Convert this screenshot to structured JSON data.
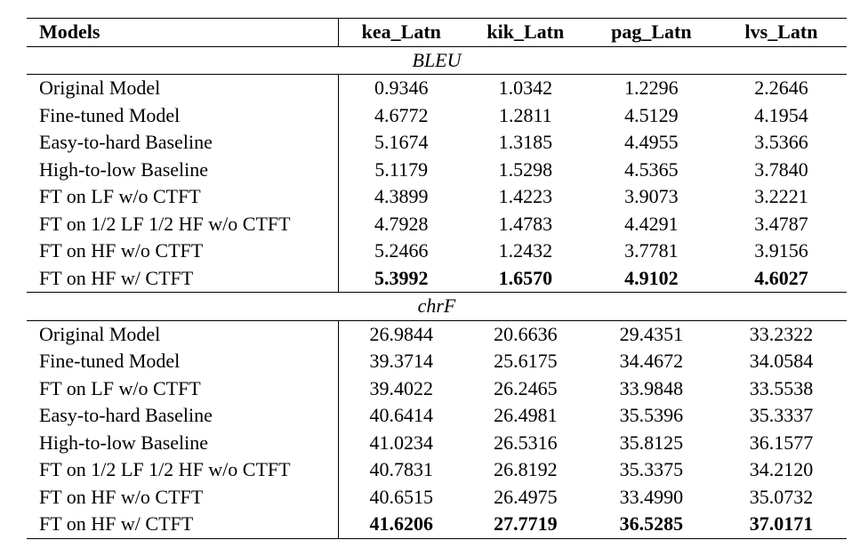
{
  "columns": [
    "Models",
    "kea_Latn",
    "kik_Latn",
    "pag_Latn",
    "lvs_Latn"
  ],
  "sections": [
    {
      "title": "BLEU",
      "rows": [
        {
          "model": "Original Model",
          "values": [
            "0.9346",
            "1.0342",
            "1.2296",
            "2.2646"
          ],
          "bold": false
        },
        {
          "model": "Fine-tuned Model",
          "values": [
            "4.6772",
            "1.2811",
            "4.5129",
            "4.1954"
          ],
          "bold": false
        },
        {
          "model": "Easy-to-hard Baseline",
          "values": [
            "5.1674",
            "1.3185",
            "4.4955",
            "3.5366"
          ],
          "bold": false
        },
        {
          "model": "High-to-low Baseline",
          "values": [
            "5.1179",
            "1.5298",
            "4.5365",
            "3.7840"
          ],
          "bold": false
        },
        {
          "model": "FT on LF w/o CTFT",
          "values": [
            "4.3899",
            "1.4223",
            "3.9073",
            "3.2221"
          ],
          "bold": false
        },
        {
          "model": "FT on 1/2 LF 1/2 HF w/o CTFT",
          "values": [
            "4.7928",
            "1.4783",
            "4.4291",
            "3.4787"
          ],
          "bold": false
        },
        {
          "model": "FT on HF w/o CTFT",
          "values": [
            "5.2466",
            "1.2432",
            "3.7781",
            "3.9156"
          ],
          "bold": false
        },
        {
          "model": "FT on HF w/ CTFT",
          "values": [
            "5.3992",
            "1.6570",
            "4.9102",
            "4.6027"
          ],
          "bold": true
        }
      ]
    },
    {
      "title": "chrF",
      "rows": [
        {
          "model": "Original Model",
          "values": [
            "26.9844",
            "20.6636",
            "29.4351",
            "33.2322"
          ],
          "bold": false
        },
        {
          "model": "Fine-tuned Model",
          "values": [
            "39.3714",
            "25.6175",
            "34.4672",
            "34.0584"
          ],
          "bold": false
        },
        {
          "model": "FT on LF w/o CTFT",
          "values": [
            "39.4022",
            "26.2465",
            "33.9848",
            "33.5538"
          ],
          "bold": false
        },
        {
          "model": "Easy-to-hard Baseline",
          "values": [
            "40.6414",
            "26.4981",
            "35.5396",
            "35.3337"
          ],
          "bold": false
        },
        {
          "model": "High-to-low Baseline",
          "values": [
            "41.0234",
            "26.5316",
            "35.8125",
            "36.1577"
          ],
          "bold": false
        },
        {
          "model": "FT on 1/2 LF 1/2 HF w/o CTFT",
          "values": [
            "40.7831",
            "26.8192",
            "35.3375",
            "34.2120"
          ],
          "bold": false
        },
        {
          "model": "FT on HF w/o CTFT",
          "values": [
            "40.6515",
            "26.4975",
            "33.4990",
            "35.0732"
          ],
          "bold": false
        },
        {
          "model": "FT on HF w/ CTFT",
          "values": [
            "41.6206",
            "27.7719",
            "36.5285",
            "37.0171"
          ],
          "bold": true
        }
      ]
    }
  ]
}
